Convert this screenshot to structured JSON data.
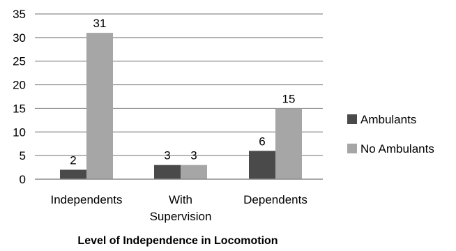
{
  "chart_data": {
    "type": "bar",
    "title": "Level of Independence in Locomotion",
    "xlabel": "Level of Independence in Locomotion",
    "ylabel": "",
    "categories": [
      [
        "Independents"
      ],
      [
        "With",
        "Supervision"
      ],
      [
        "Dependents"
      ]
    ],
    "series": [
      {
        "name": "Ambulants",
        "values": [
          2,
          3,
          6
        ],
        "color": "#4a4a4a"
      },
      {
        "name": "No Ambulants",
        "values": [
          31,
          3,
          15
        ],
        "color": "#a6a6a6"
      }
    ],
    "ylim": [
      0,
      35
    ],
    "yticks": [
      "0",
      "5",
      "10",
      "15",
      "20",
      "25",
      "30",
      "35"
    ],
    "ytick_values": [
      0,
      5,
      10,
      15,
      20,
      25,
      30,
      35
    ],
    "grid": true,
    "legend": "right",
    "gridline_color": "#8c8c8c",
    "axis_color": "#8c8c8c"
  }
}
